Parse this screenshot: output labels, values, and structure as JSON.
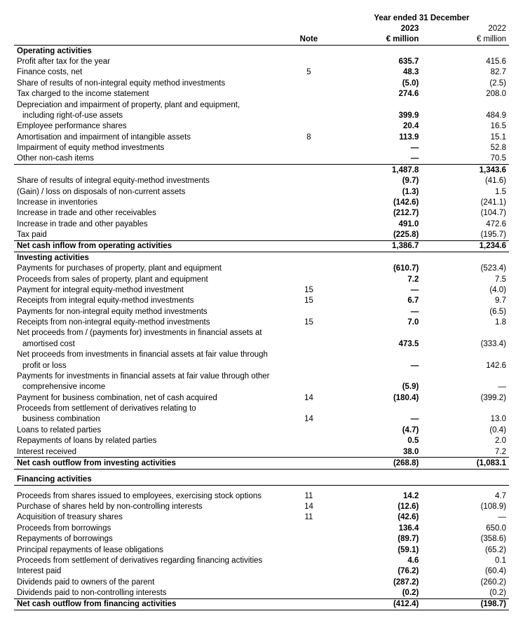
{
  "header": {
    "super": "Year ended 31 December",
    "note": "Note",
    "year_current": "2023",
    "year_prior": "2022",
    "unit_current": "€ million",
    "unit_prior": "€ million"
  },
  "sections": {
    "operating": {
      "title": "Operating activities",
      "rows": [
        {
          "label": "Profit after tax for the year",
          "note": "",
          "v1": "635.7",
          "v2": "415.6"
        },
        {
          "label": "Finance costs, net",
          "note": "5",
          "v1": "48.3",
          "v2": "82.7"
        },
        {
          "label": "Share of results of non-integral equity method investments",
          "note": "",
          "v1": "(5.0)",
          "v2": "(2.5)"
        },
        {
          "label": "Tax charged to the income statement",
          "note": "",
          "v1": "274.6",
          "v2": "208.0"
        },
        {
          "label": "Depreciation and impairment of property, plant and equipment,",
          "note": "",
          "v1": "",
          "v2": ""
        },
        {
          "label": "including right-of-use assets",
          "note": "",
          "v1": "399.9",
          "v2": "484.9",
          "indent": true
        },
        {
          "label": "Employee performance shares",
          "note": "",
          "v1": "20.4",
          "v2": "16.5"
        },
        {
          "label": "Amortisation and impairment of intangible assets",
          "note": "8",
          "v1": "113.9",
          "v2": "15.1"
        },
        {
          "label": "Impairment of equity method investments",
          "note": "",
          "v1": "—",
          "v2": "52.8"
        },
        {
          "label": "Other non-cash items",
          "note": "",
          "v1": "—",
          "v2": "70.5",
          "rule_b": true
        }
      ],
      "subtotal": {
        "label": "",
        "v1": "1,487.8",
        "v2": "1,343.6"
      },
      "rows2": [
        {
          "label": "Share of results of integral equity-method investments",
          "note": "",
          "v1": "(9.7)",
          "v2": "(41.6)"
        },
        {
          "label": "(Gain) / loss on disposals of non-current assets",
          "note": "",
          "v1": "(1.3)",
          "v2": "1.5"
        },
        {
          "label": "Increase in inventories",
          "note": "",
          "v1": "(142.6)",
          "v2": "(241.1)"
        },
        {
          "label": "Increase in trade and other receivables",
          "note": "",
          "v1": "(212.7)",
          "v2": "(104.7)"
        },
        {
          "label": "Increase in trade and other payables",
          "note": "",
          "v1": "491.0",
          "v2": "472.6"
        },
        {
          "label": "Tax paid",
          "note": "",
          "v1": "(225.8)",
          "v2": "(195.7)",
          "rule_b": true
        }
      ],
      "total": {
        "label": "Net cash inflow from operating activities",
        "v1": "1,386.7",
        "v2": "1,234.6"
      }
    },
    "investing": {
      "title": "Investing activities",
      "rows": [
        {
          "label": "Payments for purchases of property, plant and equipment",
          "note": "",
          "v1": "(610.7)",
          "v2": "(523.4)"
        },
        {
          "label": "Proceeds from sales of property, plant and equipment",
          "note": "",
          "v1": "7.2",
          "v2": "7.5"
        },
        {
          "label": "Payment for integral equity-method investment",
          "note": "15",
          "v1": "—",
          "v2": "(4.0)"
        },
        {
          "label": "Receipts from integral equity-method investments",
          "note": "15",
          "v1": "6.7",
          "v2": "9.7"
        },
        {
          "label": "Payments for non-integral equity method investments",
          "note": "",
          "v1": "—",
          "v2": "(6.5)"
        },
        {
          "label": "Receipts from non-integral equity-method investments",
          "note": "15",
          "v1": "7.0",
          "v2": "1.8"
        },
        {
          "label": "Net proceeds from / (payments for) investments in financial assets at",
          "note": "",
          "v1": "",
          "v2": ""
        },
        {
          "label": "amortised cost",
          "note": "",
          "v1": "473.5",
          "v2": "(333.4)",
          "indent": true
        },
        {
          "label": "Net proceeds from investments in financial assets at fair value through",
          "note": "",
          "v1": "",
          "v2": ""
        },
        {
          "label": "profit or loss",
          "note": "",
          "v1": "—",
          "v2": "142.6",
          "indent": true
        },
        {
          "label": "Payments for investments in financial assets at fair value through other",
          "note": "",
          "v1": "",
          "v2": ""
        },
        {
          "label": "comprehensive income",
          "note": "",
          "v1": "(5.9)",
          "v2": "—",
          "indent": true
        },
        {
          "label": "Payment for business combination, net of cash acquired",
          "note": "14",
          "v1": "(180.4)",
          "v2": "(399.2)"
        },
        {
          "label": "Proceeds from settlement of derivatives relating to",
          "note": "",
          "v1": "",
          "v2": ""
        },
        {
          "label": "business combination",
          "note": "14",
          "v1": "—",
          "v2": "13.0",
          "indent": true
        },
        {
          "label": "Loans to related parties",
          "note": "",
          "v1": "(4.7)",
          "v2": "(0.4)"
        },
        {
          "label": "Repayments of loans by related parties",
          "note": "",
          "v1": "0.5",
          "v2": "2.0"
        },
        {
          "label": "Interest received",
          "note": "",
          "v1": "38.0",
          "v2": "7.2",
          "rule_b": true
        }
      ],
      "total": {
        "label": "Net cash outflow from investing activities",
        "v1": "(268.8)",
        "v2": "(1,083.1"
      }
    },
    "financing": {
      "title": "Financing activities",
      "rows": [
        {
          "label": "Proceeds from shares issued to employees, exercising stock options",
          "note": "11",
          "v1": "14.2",
          "v2": "4.7"
        },
        {
          "label": "Purchase of shares held by non-controlling interests",
          "note": "14",
          "v1": "(12.6)",
          "v2": "(108.9)"
        },
        {
          "label": "Acquisition of treasury shares",
          "note": "11",
          "v1": "(42.6)",
          "v2": "—"
        },
        {
          "label": "Proceeds from borrowings",
          "note": "",
          "v1": "136.4",
          "v2": "650.0"
        },
        {
          "label": "Repayments of borrowings",
          "note": "",
          "v1": "(89.7)",
          "v2": "(358.6)"
        },
        {
          "label": "Principal repayments of lease obligations",
          "note": "",
          "v1": "(59.1)",
          "v2": "(65.2)"
        },
        {
          "label": "Proceeds from settlement of derivatives regarding financing activities",
          "note": "",
          "v1": "4.6",
          "v2": "0.1"
        },
        {
          "label": "Interest paid",
          "note": "",
          "v1": "(76.2)",
          "v2": "(60.4)"
        },
        {
          "label": "Dividends paid to owners of the parent",
          "note": "",
          "v1": "(287.2)",
          "v2": "(260.2)"
        },
        {
          "label": "Dividends paid to non-controlling interests",
          "note": "",
          "v1": "(0.2)",
          "v2": "(0.2)",
          "rule_b": true
        }
      ],
      "total": {
        "label": "Net cash outflow from financing activities",
        "v1": "(412.4)",
        "v2": "(198.7)"
      }
    }
  }
}
